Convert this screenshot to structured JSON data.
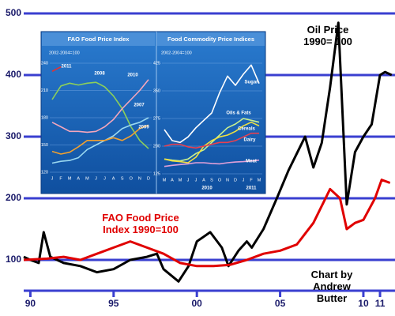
{
  "chart_data": [
    {
      "type": "line",
      "annotations": [
        "Chart by Andrew Butter"
      ],
      "xlim": [
        1989.6,
        2011.9
      ],
      "xticks": [
        {
          "value": 1990,
          "label": "90"
        },
        {
          "value": 1995,
          "label": "95"
        },
        {
          "value": 2000,
          "label": "00"
        },
        {
          "value": 2005,
          "label": "05"
        },
        {
          "value": 2010,
          "label": "10"
        },
        {
          "value": 2011,
          "label": "11"
        }
      ],
      "ylim": [
        50,
        500
      ],
      "yticks": [
        100,
        200,
        300,
        400,
        500
      ],
      "grid": true,
      "series": [
        {
          "name": "Oil Price\n1990= 100",
          "color": "#000000",
          "x": [
            1989.6,
            1990,
            1990.5,
            1990.8,
            1991.2,
            1991.6,
            1992,
            1993,
            1994,
            1995,
            1996,
            1997,
            1997.6,
            1998,
            1998.9,
            1999.5,
            2000,
            2000.8,
            2001.5,
            2001.9,
            2002.5,
            2003,
            2003.3,
            2004,
            2004.8,
            2005.5,
            2006.5,
            2007,
            2007.5,
            2008,
            2008.5,
            2009,
            2009.5,
            2010,
            2010.5,
            2011,
            2011.3,
            2011.7
          ],
          "values": [
            105,
            100,
            95,
            145,
            105,
            100,
            95,
            90,
            80,
            85,
            100,
            105,
            110,
            85,
            65,
            90,
            130,
            145,
            120,
            90,
            115,
            130,
            120,
            150,
            200,
            245,
            300,
            250,
            290,
            380,
            485,
            190,
            275,
            300,
            320,
            400,
            405,
            400
          ]
        },
        {
          "name": "FAO Food Price\nIndex 1990=100",
          "color": "#e00000",
          "x": [
            1989.6,
            1991,
            1992,
            1993,
            1994,
            1995,
            1996,
            1997,
            1998,
            1999,
            2000,
            2001,
            2002,
            2003,
            2004,
            2005,
            2006,
            2007,
            2008,
            2008.6,
            2009,
            2009.5,
            2010,
            2010.7,
            2011.1,
            2011.6
          ],
          "values": [
            100,
            102,
            105,
            100,
            110,
            120,
            130,
            120,
            110,
            95,
            90,
            90,
            92,
            100,
            110,
            115,
            125,
            160,
            215,
            200,
            150,
            160,
            165,
            200,
            230,
            225
          ]
        }
      ]
    },
    {
      "type": "line",
      "title": "FAO Food Price Index",
      "subtitle": "2002-2004=100",
      "categories": [
        "J",
        "F",
        "M",
        "A",
        "M",
        "J",
        "J",
        "A",
        "S",
        "O",
        "N",
        "D"
      ],
      "ylim": [
        120,
        240
      ],
      "yticks": [
        120,
        150,
        180,
        210,
        240
      ],
      "grid": true,
      "series": [
        {
          "name": "2011",
          "color": "#e83030",
          "values": [
            231,
            236,
            null,
            null,
            null,
            null,
            null,
            null,
            null,
            null,
            null,
            null
          ]
        },
        {
          "name": "2008",
          "color": "#8ccf5a",
          "values": [
            200,
            215,
            218,
            216,
            218,
            219,
            214,
            204,
            190,
            170,
            155,
            146
          ]
        },
        {
          "name": "2010",
          "color": "#f4a6bc",
          "values": [
            175,
            170,
            165,
            165,
            164,
            165,
            170,
            178,
            190,
            200,
            210,
            222
          ]
        },
        {
          "name": "2007",
          "color": "#9ad8f0",
          "values": [
            130,
            132,
            133,
            136,
            145,
            150,
            155,
            160,
            168,
            172,
            175,
            180
          ]
        },
        {
          "name": "2009",
          "color": "#f0a030",
          "values": [
            143,
            140,
            142,
            148,
            155,
            155,
            155,
            158,
            155,
            160,
            168,
            172
          ]
        }
      ]
    },
    {
      "type": "line",
      "title": "Food Commodity Price Indices",
      "subtitle": "2002-2004=100",
      "annotations": [
        "2010",
        "2011"
      ],
      "categories": [
        "M",
        "A",
        "M",
        "J",
        "J",
        "A",
        "S",
        "O",
        "N",
        "D",
        "J",
        "F",
        "M"
      ],
      "ylim": [
        125,
        425
      ],
      "yticks": [
        125,
        200,
        275,
        350,
        425
      ],
      "grid": true,
      "series": [
        {
          "name": "Sugar",
          "color": "#ffffff",
          "values": [
            245,
            215,
            210,
            225,
            250,
            270,
            290,
            345,
            390,
            365,
            395,
            420,
            370
          ]
        },
        {
          "name": "Oils & Fats",
          "color": "#c8f090",
          "values": [
            165,
            162,
            160,
            165,
            180,
            190,
            210,
            230,
            250,
            260,
            275,
            270,
            265
          ]
        },
        {
          "name": "Cereals",
          "color": "#f0e040",
          "values": [
            165,
            160,
            158,
            155,
            170,
            200,
            215,
            225,
            230,
            240,
            255,
            265,
            255
          ]
        },
        {
          "name": "Dairy",
          "color": "#e84050",
          "values": [
            200,
            205,
            205,
            198,
            195,
            200,
            205,
            210,
            210,
            215,
            225,
            235,
            235
          ]
        },
        {
          "name": "Meat",
          "color": "#e0a0d8",
          "values": [
            145,
            148,
            150,
            152,
            155,
            155,
            153,
            152,
            155,
            157,
            158,
            160,
            162
          ]
        }
      ]
    }
  ]
}
